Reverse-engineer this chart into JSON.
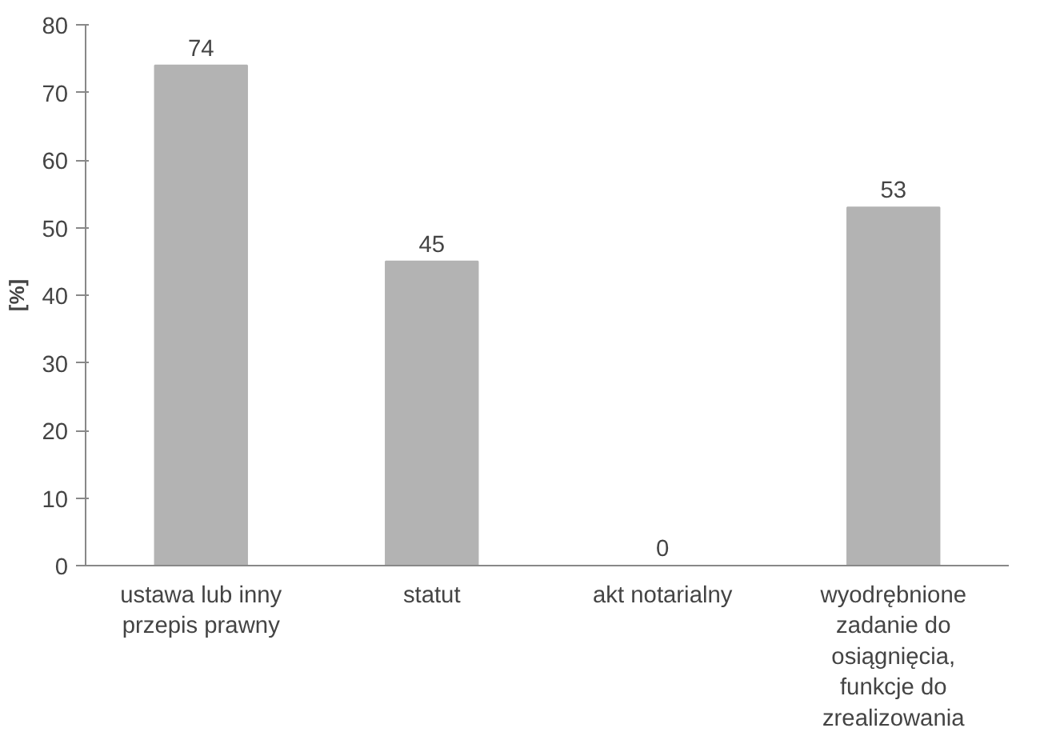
{
  "chart_data": {
    "type": "bar",
    "ylabel": "[%]",
    "categories": [
      "ustawa lub inny przepis prawny",
      "statut",
      "akt notarialny",
      "wyodrębnione zadanie do osiągnięcia, funkcje do zrealizowania"
    ],
    "values": [
      74,
      45,
      0,
      53
    ],
    "color": "#b3b3b3",
    "ylim": [
      0,
      80
    ],
    "yticks": [
      0,
      10,
      20,
      30,
      40,
      50,
      60,
      70,
      80
    ],
    "grid": false,
    "data_labels": true
  }
}
